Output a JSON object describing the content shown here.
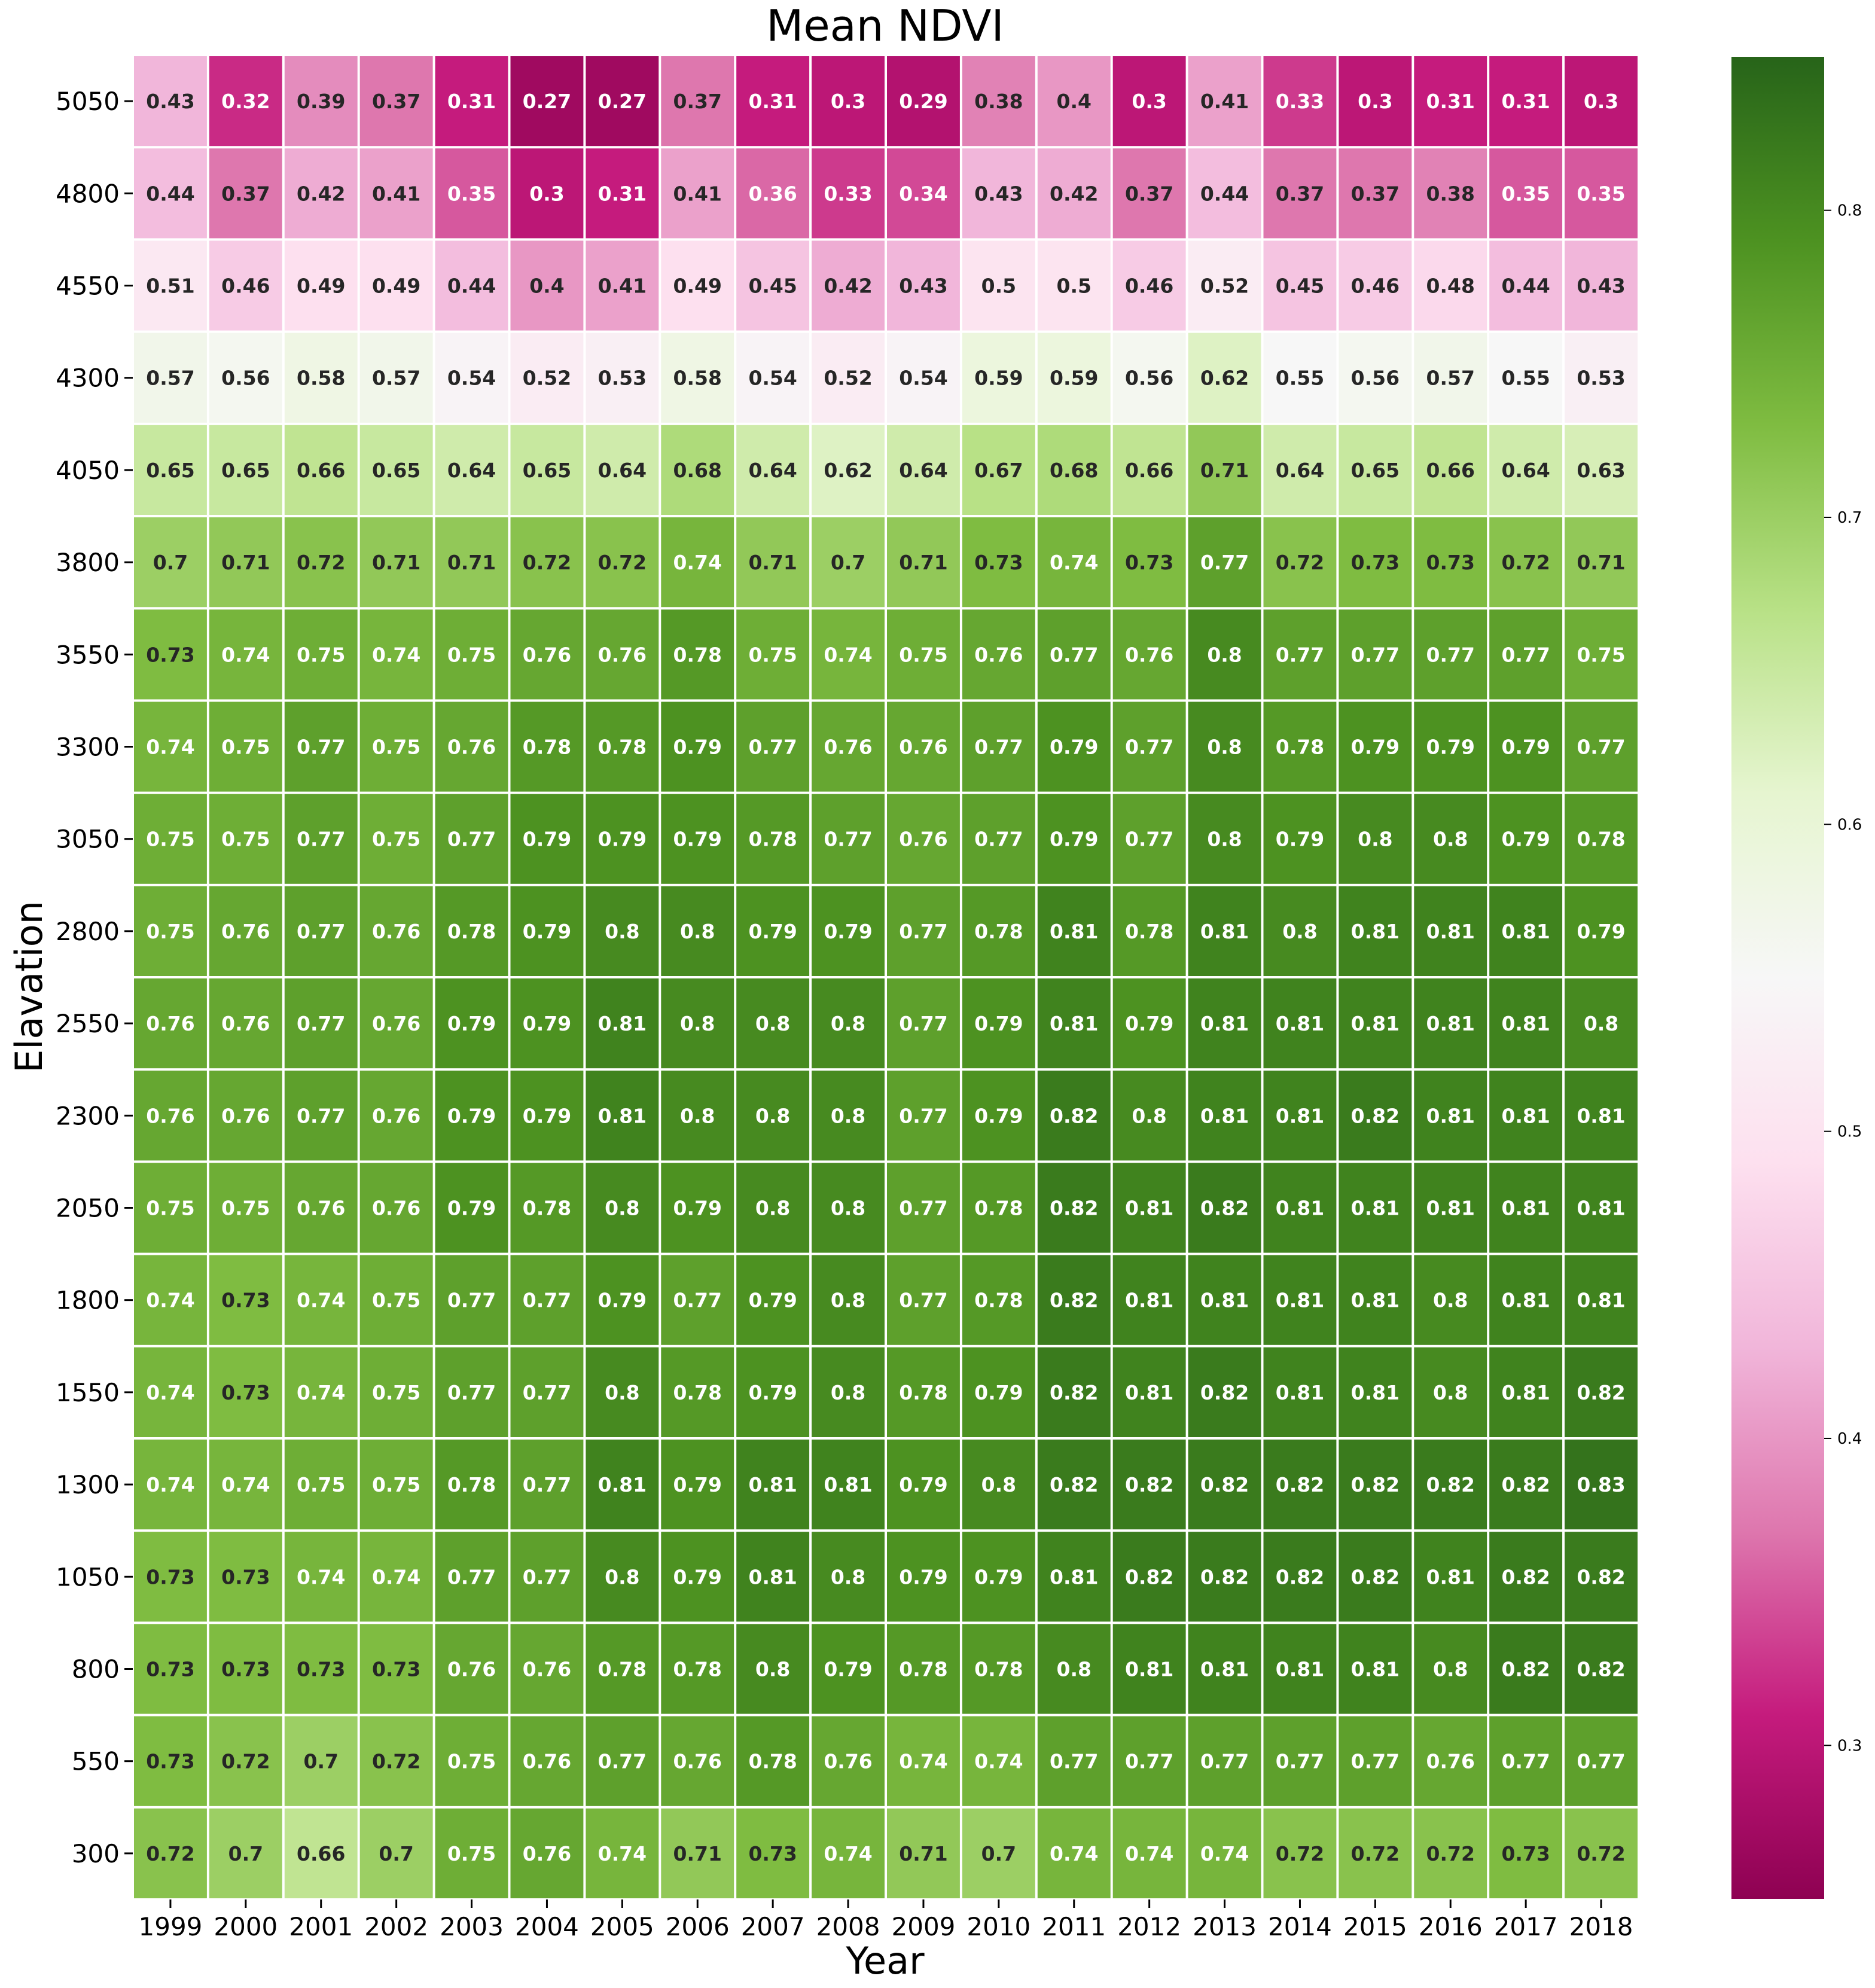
{
  "chart_data": {
    "type": "heatmap",
    "title": "Mean NDVI",
    "xlabel": "Year",
    "ylabel": "Elavation",
    "x": [
      "1999",
      "2000",
      "2001",
      "2002",
      "2003",
      "2004",
      "2005",
      "2006",
      "2007",
      "2008",
      "2009",
      "2010",
      "2011",
      "2012",
      "2013",
      "2014",
      "2015",
      "2016",
      "2017",
      "2018"
    ],
    "y": [
      "5050",
      "4800",
      "4550",
      "4300",
      "4050",
      "3800",
      "3550",
      "3300",
      "3050",
      "2800",
      "2550",
      "2300",
      "2050",
      "1800",
      "1550",
      "1300",
      "1050",
      "800",
      "550",
      "300"
    ],
    "values": [
      [
        0.43,
        0.32,
        0.39,
        0.37,
        0.31,
        0.27,
        0.27,
        0.37,
        0.31,
        0.3,
        0.29,
        0.38,
        0.4,
        0.3,
        0.41,
        0.33,
        0.3,
        0.31,
        0.31,
        0.3
      ],
      [
        0.44,
        0.37,
        0.42,
        0.41,
        0.35,
        0.3,
        0.31,
        0.41,
        0.36,
        0.33,
        0.34,
        0.43,
        0.42,
        0.37,
        0.44,
        0.37,
        0.37,
        0.38,
        0.35,
        0.35
      ],
      [
        0.51,
        0.46,
        0.49,
        0.49,
        0.44,
        0.4,
        0.41,
        0.49,
        0.45,
        0.42,
        0.43,
        0.5,
        0.5,
        0.46,
        0.52,
        0.45,
        0.46,
        0.48,
        0.44,
        0.43
      ],
      [
        0.57,
        0.56,
        0.58,
        0.57,
        0.54,
        0.52,
        0.53,
        0.58,
        0.54,
        0.52,
        0.54,
        0.59,
        0.59,
        0.56,
        0.62,
        0.55,
        0.56,
        0.57,
        0.55,
        0.53
      ],
      [
        0.65,
        0.65,
        0.66,
        0.65,
        0.64,
        0.65,
        0.64,
        0.68,
        0.64,
        0.62,
        0.64,
        0.67,
        0.68,
        0.66,
        0.71,
        0.64,
        0.65,
        0.66,
        0.64,
        0.63
      ],
      [
        0.7,
        0.71,
        0.72,
        0.71,
        0.71,
        0.72,
        0.72,
        0.74,
        0.71,
        0.7,
        0.71,
        0.73,
        0.74,
        0.73,
        0.77,
        0.72,
        0.73,
        0.73,
        0.72,
        0.71
      ],
      [
        0.73,
        0.74,
        0.75,
        0.74,
        0.75,
        0.76,
        0.76,
        0.78,
        0.75,
        0.74,
        0.75,
        0.76,
        0.77,
        0.76,
        0.8,
        0.77,
        0.77,
        0.77,
        0.77,
        0.75
      ],
      [
        0.74,
        0.75,
        0.77,
        0.75,
        0.76,
        0.78,
        0.78,
        0.79,
        0.77,
        0.76,
        0.76,
        0.77,
        0.79,
        0.77,
        0.8,
        0.78,
        0.79,
        0.79,
        0.79,
        0.77
      ],
      [
        0.75,
        0.75,
        0.77,
        0.75,
        0.77,
        0.79,
        0.79,
        0.79,
        0.78,
        0.77,
        0.76,
        0.77,
        0.79,
        0.77,
        0.8,
        0.79,
        0.8,
        0.8,
        0.79,
        0.78
      ],
      [
        0.75,
        0.76,
        0.77,
        0.76,
        0.78,
        0.79,
        0.8,
        0.8,
        0.79,
        0.79,
        0.77,
        0.78,
        0.81,
        0.78,
        0.81,
        0.8,
        0.81,
        0.81,
        0.81,
        0.79
      ],
      [
        0.76,
        0.76,
        0.77,
        0.76,
        0.79,
        0.79,
        0.81,
        0.8,
        0.8,
        0.8,
        0.77,
        0.79,
        0.81,
        0.79,
        0.81,
        0.81,
        0.81,
        0.81,
        0.81,
        0.8
      ],
      [
        0.76,
        0.76,
        0.77,
        0.76,
        0.79,
        0.79,
        0.81,
        0.8,
        0.8,
        0.8,
        0.77,
        0.79,
        0.82,
        0.8,
        0.81,
        0.81,
        0.82,
        0.81,
        0.81,
        0.81
      ],
      [
        0.75,
        0.75,
        0.76,
        0.76,
        0.79,
        0.78,
        0.8,
        0.79,
        0.8,
        0.8,
        0.77,
        0.78,
        0.82,
        0.81,
        0.82,
        0.81,
        0.81,
        0.81,
        0.81,
        0.81
      ],
      [
        0.74,
        0.73,
        0.74,
        0.75,
        0.77,
        0.77,
        0.79,
        0.77,
        0.79,
        0.8,
        0.77,
        0.78,
        0.82,
        0.81,
        0.81,
        0.81,
        0.81,
        0.8,
        0.81,
        0.81
      ],
      [
        0.74,
        0.73,
        0.74,
        0.75,
        0.77,
        0.77,
        0.8,
        0.78,
        0.79,
        0.8,
        0.78,
        0.79,
        0.82,
        0.81,
        0.82,
        0.81,
        0.81,
        0.8,
        0.81,
        0.82
      ],
      [
        0.74,
        0.74,
        0.75,
        0.75,
        0.78,
        0.77,
        0.81,
        0.79,
        0.81,
        0.81,
        0.79,
        0.8,
        0.82,
        0.82,
        0.82,
        0.82,
        0.82,
        0.82,
        0.82,
        0.83
      ],
      [
        0.73,
        0.73,
        0.74,
        0.74,
        0.77,
        0.77,
        0.8,
        0.79,
        0.81,
        0.8,
        0.79,
        0.79,
        0.81,
        0.82,
        0.82,
        0.82,
        0.82,
        0.81,
        0.82,
        0.82
      ],
      [
        0.73,
        0.73,
        0.73,
        0.73,
        0.76,
        0.76,
        0.78,
        0.78,
        0.8,
        0.79,
        0.78,
        0.78,
        0.8,
        0.81,
        0.81,
        0.81,
        0.81,
        0.8,
        0.82,
        0.82
      ],
      [
        0.73,
        0.72,
        0.7,
        0.72,
        0.75,
        0.76,
        0.77,
        0.76,
        0.78,
        0.76,
        0.74,
        0.74,
        0.77,
        0.77,
        0.77,
        0.77,
        0.77,
        0.76,
        0.77,
        0.77
      ],
      [
        0.72,
        0.7,
        0.66,
        0.7,
        0.75,
        0.76,
        0.74,
        0.71,
        0.73,
        0.74,
        0.71,
        0.7,
        0.74,
        0.74,
        0.74,
        0.72,
        0.72,
        0.72,
        0.73,
        0.72
      ]
    ],
    "colormap": "PiYG",
    "colorbar": {
      "range": [
        0.25,
        0.85
      ],
      "ticks": [
        "0.3",
        "0.4",
        "0.5",
        "0.6",
        "0.7",
        "0.8"
      ],
      "tick_values": [
        0.3,
        0.4,
        0.5,
        0.6,
        0.7,
        0.8
      ]
    },
    "annotations": "cell values printed in each cell",
    "grid": false
  }
}
